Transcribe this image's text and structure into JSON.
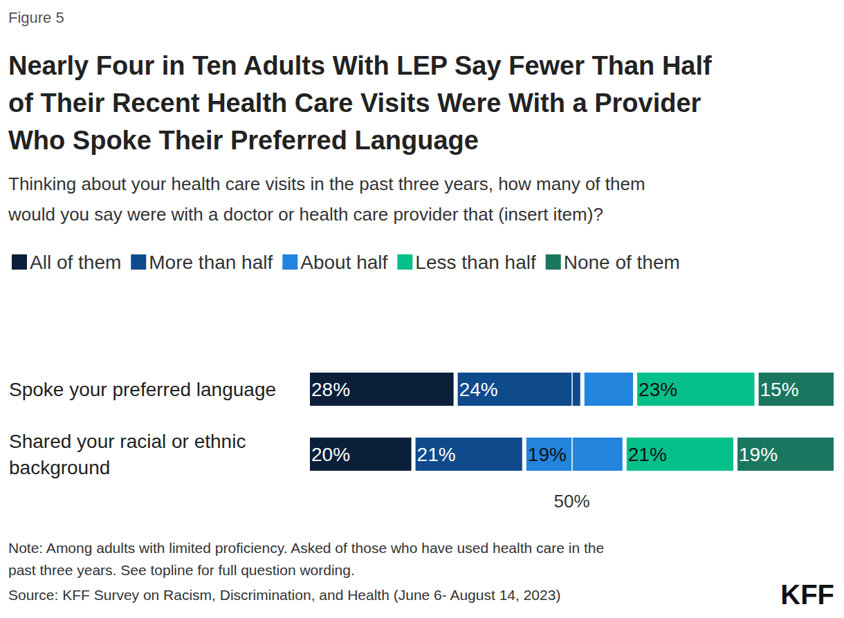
{
  "chart_data": {
    "type": "bar",
    "figure_label": "Figure 5",
    "title": "Nearly Four in Ten Adults With LEP Say Fewer Than Half of Their Recent Health Care Visits Were With a Provider Who Spoke Their Preferred Language",
    "subtitle": "Thinking about your health care visits in the past three years, how many of them would you say were with a doctor or health care provider that (insert item)?",
    "note": "Note: Among adults with limited proficiency. Asked of those who have used health care in the past three years. See topline for full question wording.",
    "source": "Source: KFF Survey on Racism, Discrimination, and Health (June 6- August 14, 2023)",
    "logo": "KFF",
    "orientation": "horizontal",
    "stacked": true,
    "data_labels": true,
    "tick_labels": false,
    "xlim": [
      0,
      100
    ],
    "annotations": [
      {
        "value": 50,
        "label": "50%"
      }
    ],
    "categories": [
      "Spoke your preferred language",
      "Shared your racial or ethnic background"
    ],
    "series": [
      {
        "name": "All of them",
        "color": "#0b1f3a",
        "values": [
          28,
          20
        ],
        "value_labels": [
          "28%",
          "20%"
        ]
      },
      {
        "name": "More than half",
        "color": "#0e4a8c",
        "values": [
          24,
          21
        ],
        "value_labels": [
          "24%",
          "21%"
        ]
      },
      {
        "name": "About half",
        "color": "#2384de",
        "values": [
          10,
          19
        ],
        "value_labels": [
          null,
          "19%"
        ]
      },
      {
        "name": "Less than half",
        "color": "#05c08a",
        "values": [
          23,
          21
        ],
        "value_labels": [
          "23%",
          "21%"
        ]
      },
      {
        "name": "None of them",
        "color": "#1b7660",
        "values": [
          15,
          19
        ],
        "value_labels": [
          "15%",
          "19%"
        ]
      }
    ]
  }
}
